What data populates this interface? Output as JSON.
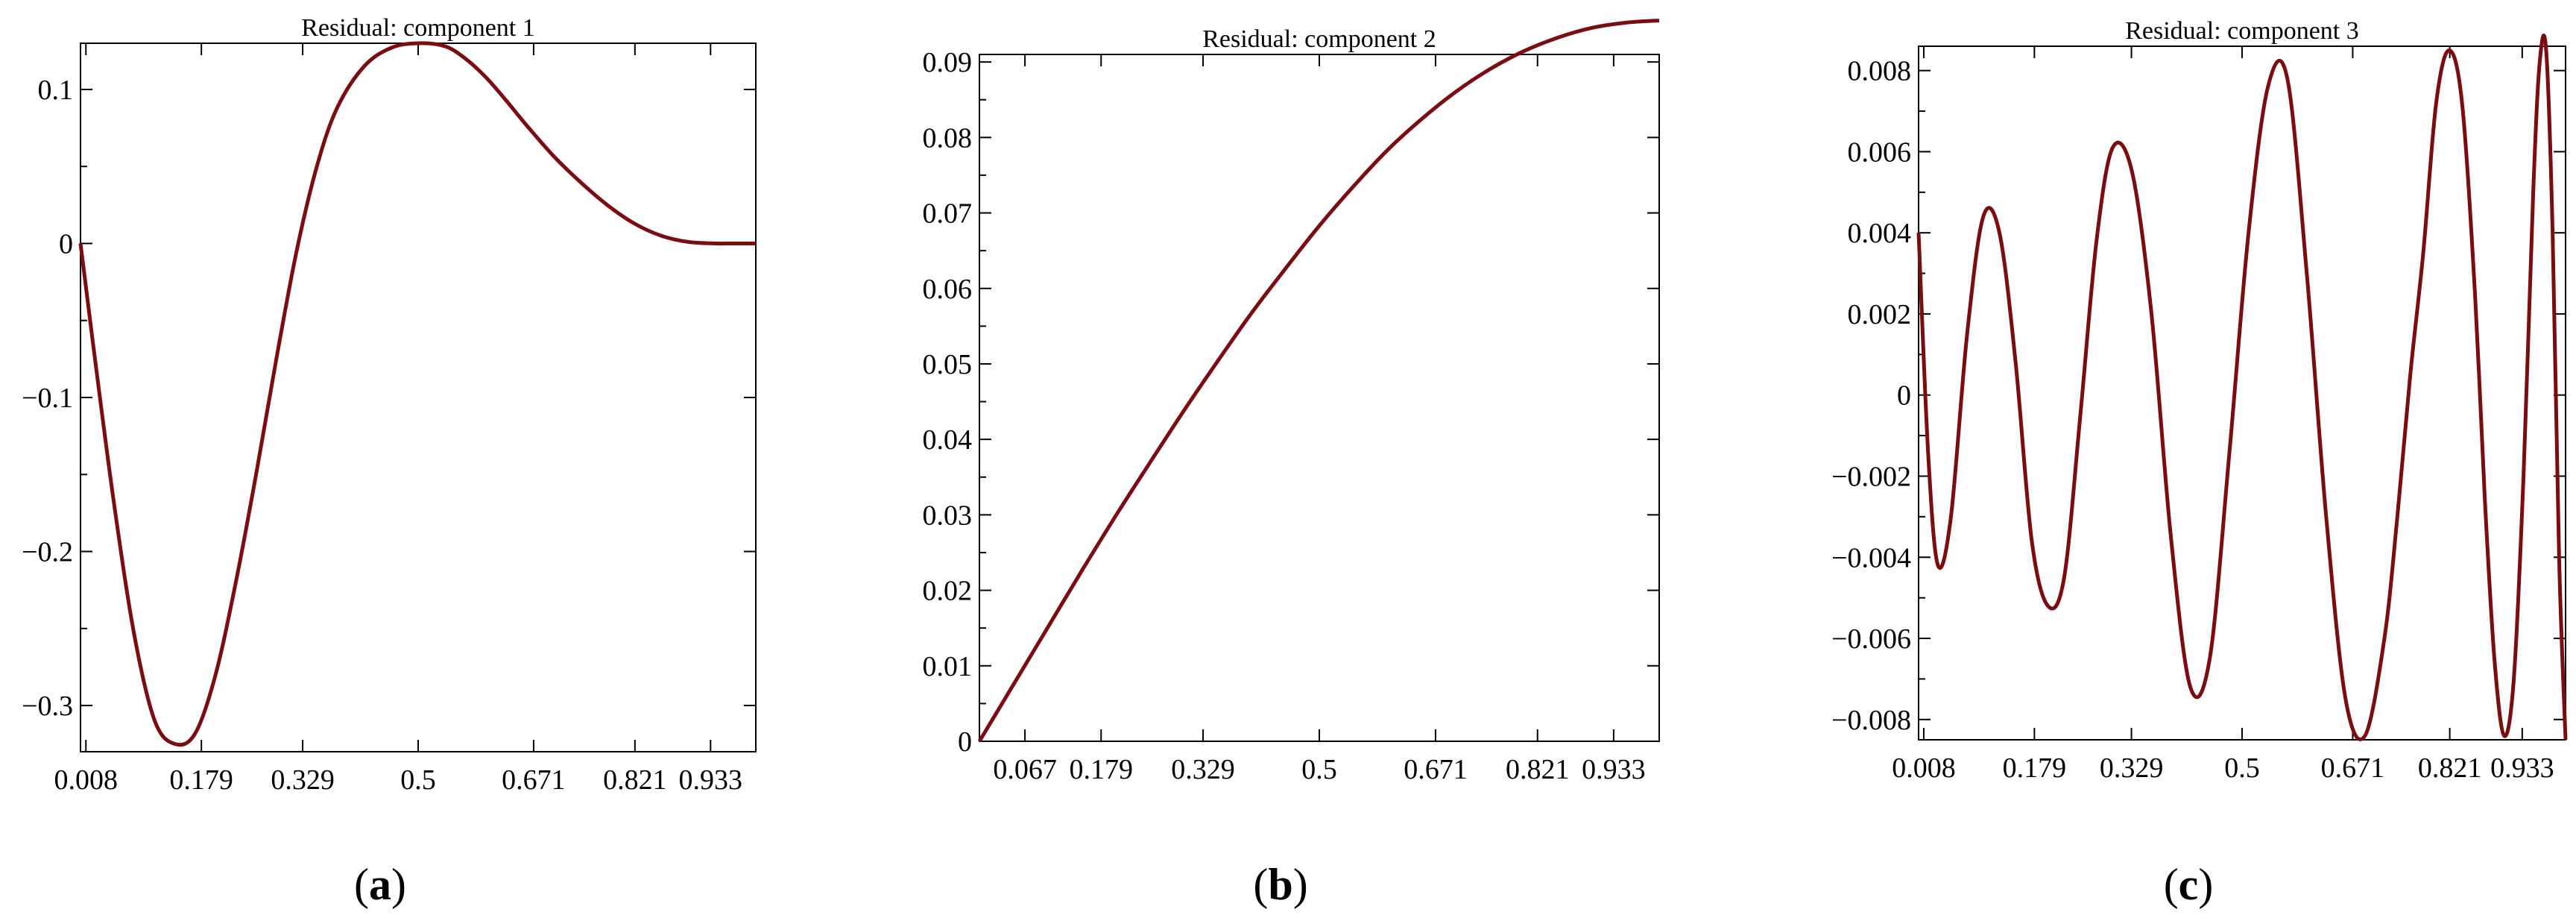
{
  "figure": {
    "panel_labels": [
      "(a)",
      "(b)",
      "(c)"
    ],
    "line_color": "#7b0c0f"
  },
  "chart_data": [
    {
      "type": "line",
      "title": "Residual: component 1",
      "xlabel": "",
      "ylabel": "",
      "xlim": [
        0.0,
        1.0
      ],
      "ylim": [
        -0.33,
        0.13
      ],
      "xticks": [
        0.008,
        0.179,
        0.329,
        0.5,
        0.671,
        0.821,
        0.933
      ],
      "xtick_labels": [
        "0.008",
        "0.179",
        "0.329",
        "0.5",
        "0.671",
        "0.821",
        "0.933"
      ],
      "yticks": [
        -0.3,
        -0.2,
        -0.1,
        0,
        0.1
      ],
      "ytick_labels": [
        "−0.3",
        "−0.2",
        "−0.1",
        "0",
        "0.1"
      ],
      "grid": false,
      "series": [
        {
          "x": [
            0.0,
            0.02,
            0.05,
            0.08,
            0.11,
            0.14,
            0.17,
            0.2,
            0.23,
            0.26,
            0.29,
            0.32,
            0.35,
            0.38,
            0.42,
            0.46,
            0.5,
            0.54,
            0.57,
            0.6,
            0.63,
            0.66,
            0.7,
            0.74,
            0.78,
            0.82,
            0.86,
            0.9,
            0.94,
            0.97,
            1.0
          ],
          "y": [
            0.0,
            -0.07,
            -0.17,
            -0.255,
            -0.31,
            -0.325,
            -0.318,
            -0.28,
            -0.22,
            -0.15,
            -0.075,
            -0.005,
            0.05,
            0.088,
            0.115,
            0.127,
            0.13,
            0.128,
            0.12,
            0.108,
            0.093,
            0.077,
            0.057,
            0.04,
            0.025,
            0.013,
            0.005,
            0.001,
            0.0,
            0.0,
            0.0
          ]
        }
      ]
    },
    {
      "type": "line",
      "title": "Residual: component 2",
      "xlabel": "",
      "ylabel": "",
      "xlim": [
        0.0,
        1.0
      ],
      "ylim": [
        0.0,
        0.091
      ],
      "xticks": [
        0.067,
        0.179,
        0.329,
        0.5,
        0.671,
        0.821,
        0.933
      ],
      "xtick_labels": [
        "0.067",
        "0.179",
        "0.329",
        "0.5",
        "0.671",
        "0.821",
        "0.933"
      ],
      "yticks": [
        0,
        0.01,
        0.02,
        0.03,
        0.04,
        0.05,
        0.06,
        0.07,
        0.08,
        0.09
      ],
      "ytick_labels": [
        "0",
        "0.01",
        "0.02",
        "0.03",
        "0.04",
        "0.05",
        "0.06",
        "0.07",
        "0.08",
        "0.09"
      ],
      "grid": false,
      "series": [
        {
          "x": [
            0.0,
            0.05,
            0.1,
            0.15,
            0.2,
            0.25,
            0.3,
            0.35,
            0.4,
            0.45,
            0.5,
            0.55,
            0.6,
            0.65,
            0.7,
            0.75,
            0.8,
            0.85,
            0.9,
            0.95,
            1.0
          ],
          "y": [
            0.0,
            0.0075,
            0.015,
            0.0225,
            0.0298,
            0.0368,
            0.0437,
            0.0503,
            0.0567,
            0.0626,
            0.0683,
            0.0735,
            0.0783,
            0.0824,
            0.086,
            0.089,
            0.0914,
            0.0932,
            0.0945,
            0.0952,
            0.0955
          ]
        }
      ]
    },
    {
      "type": "line",
      "title": "Residual: component 3",
      "xlabel": "",
      "ylabel": "",
      "xlim": [
        0.0,
        1.0
      ],
      "ylim": [
        -0.0085,
        0.0086
      ],
      "xticks": [
        0.008,
        0.179,
        0.329,
        0.5,
        0.671,
        0.821,
        0.933
      ],
      "xtick_labels": [
        "0.008",
        "0.179",
        "0.329",
        "0.5",
        "0.671",
        "0.821",
        "0.933"
      ],
      "yticks": [
        -0.008,
        -0.006,
        -0.004,
        -0.002,
        0,
        0.002,
        0.004,
        0.006,
        0.008
      ],
      "ytick_labels": [
        "−0.008",
        "−0.006",
        "−0.004",
        "−0.002",
        "0",
        "0.002",
        "0.004",
        "0.006",
        "0.008"
      ],
      "grid": false,
      "series": [
        {
          "x": [
            0.0,
            0.015,
            0.03,
            0.05,
            0.075,
            0.1,
            0.125,
            0.15,
            0.175,
            0.2,
            0.225,
            0.25,
            0.275,
            0.3,
            0.33,
            0.36,
            0.39,
            0.42,
            0.45,
            0.48,
            0.51,
            0.54,
            0.57,
            0.6,
            0.63,
            0.66,
            0.69,
            0.72,
            0.74,
            0.76,
            0.78,
            0.8,
            0.82,
            0.84,
            0.86,
            0.875,
            0.89,
            0.905,
            0.92,
            0.935,
            0.95,
            0.96,
            0.97,
            0.98,
            0.99,
            1.0
          ],
          "y": [
            0.004,
            -0.0015,
            -0.0042,
            -0.003,
            0.0015,
            0.0044,
            0.004,
            0.0008,
            -0.0036,
            -0.0052,
            -0.0045,
            -0.0005,
            0.0038,
            0.0061,
            0.0055,
            0.002,
            -0.0035,
            -0.0072,
            -0.0065,
            -0.0015,
            0.004,
            0.0076,
            0.0078,
            0.003,
            -0.003,
            -0.0075,
            -0.0084,
            -0.006,
            -0.003,
            0.0005,
            0.0035,
            0.0072,
            0.0085,
            0.0072,
            0.0025,
            -0.0025,
            -0.0065,
            -0.0084,
            -0.007,
            -0.002,
            0.005,
            0.0082,
            0.0085,
            0.004,
            -0.004,
            -0.0085
          ]
        }
      ]
    }
  ]
}
